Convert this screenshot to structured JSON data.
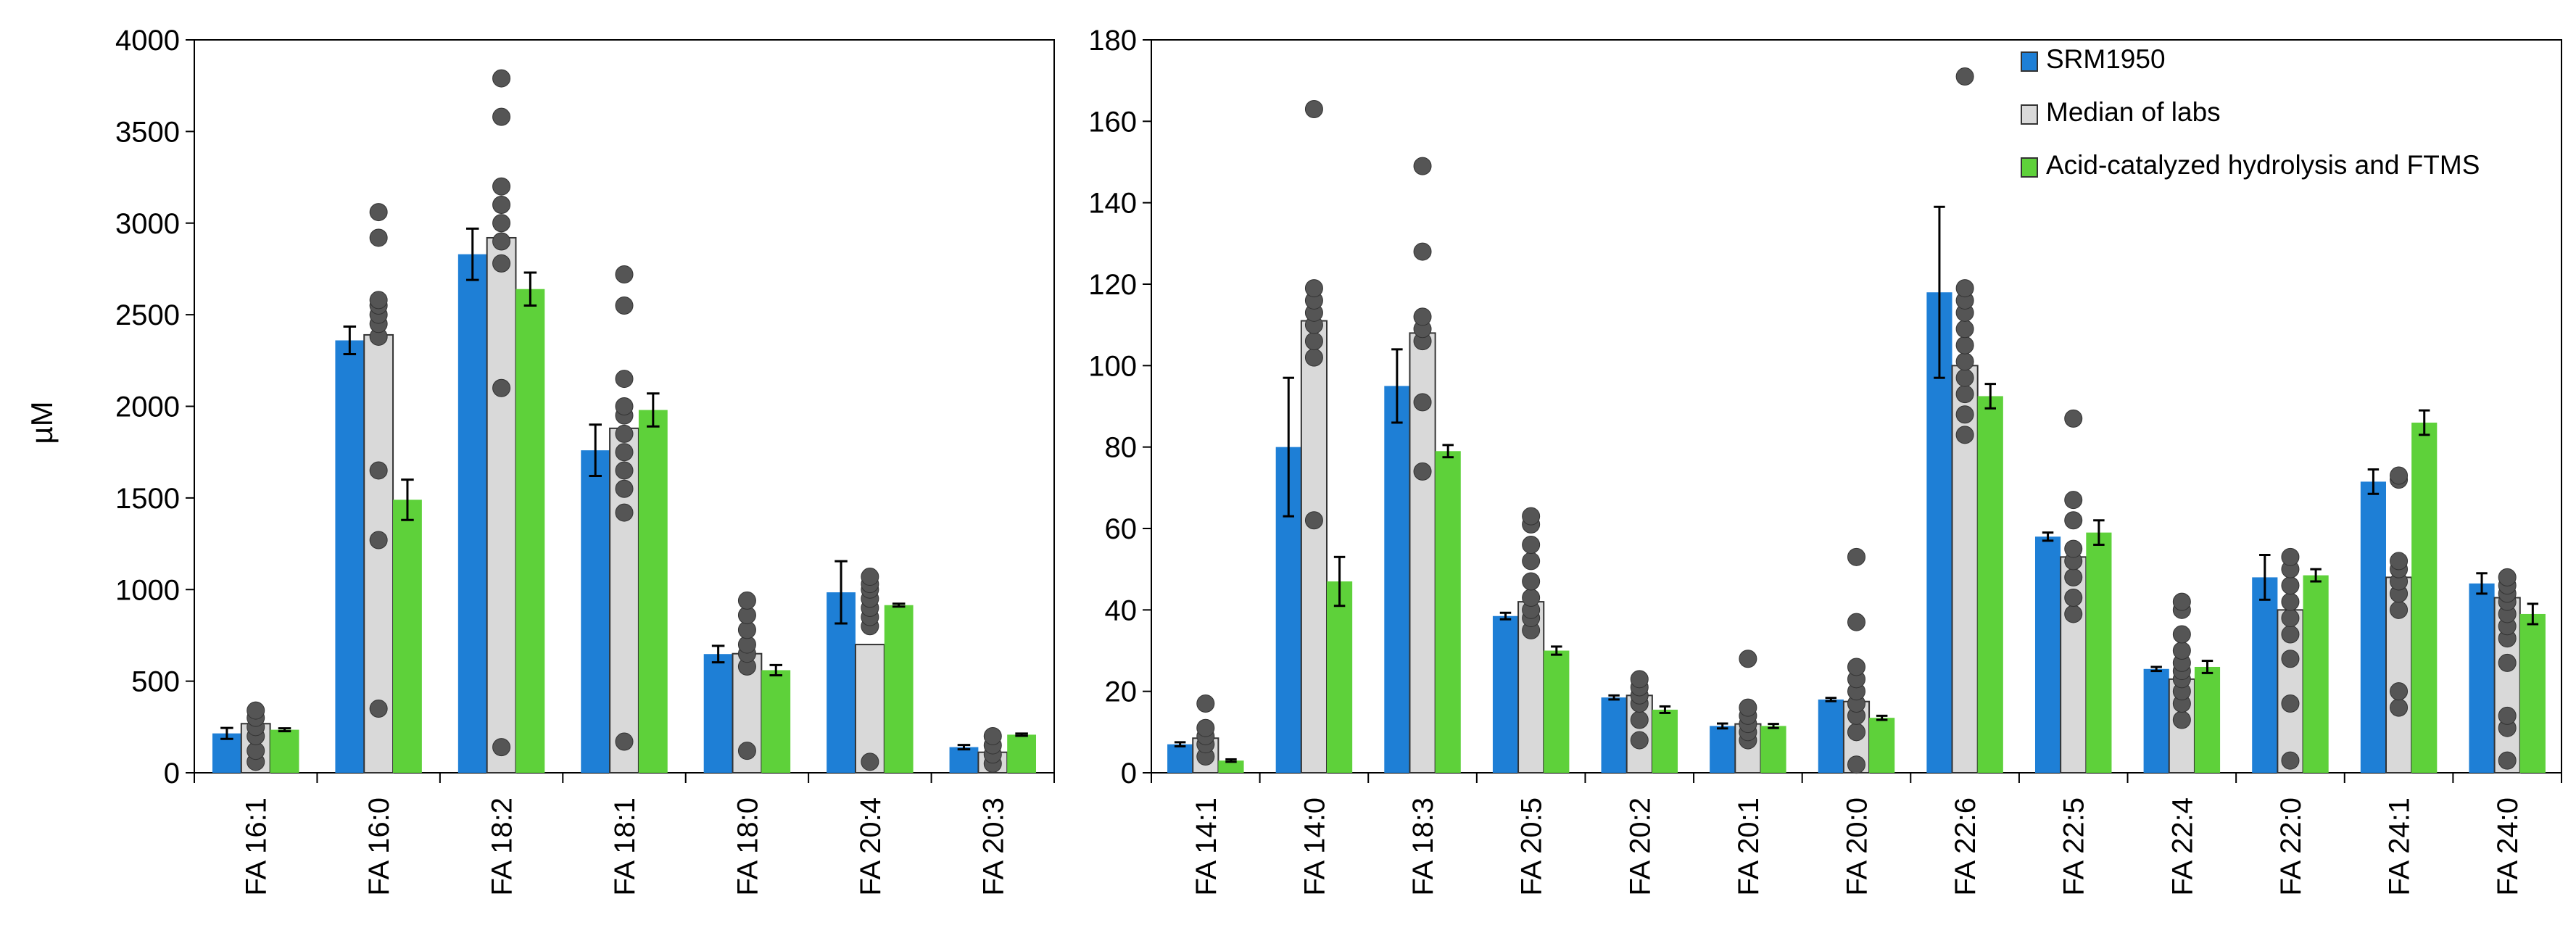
{
  "colors": {
    "srm": "#1e7fd6",
    "median": "#d9d9d9",
    "acid": "#5ed13a",
    "dots": "#555555",
    "error": "#000000"
  },
  "chart_data": [
    {
      "type": "bar",
      "ylabel": "µM",
      "ylim": [
        0,
        4000
      ],
      "yticks": [
        0,
        500,
        1000,
        1500,
        2000,
        2500,
        3000,
        3500,
        4000
      ],
      "yticklabels": [
        "0",
        "500",
        "1000",
        "1500",
        "2000",
        "2500",
        "3000",
        "3500",
        "4000"
      ],
      "categories": [
        "FA 16:1",
        "FA 16:0",
        "FA 18:2",
        "FA 18:1",
        "FA 18:0",
        "FA 20:4",
        "FA 20:3"
      ],
      "series": [
        {
          "name": "SRM1950",
          "color_key": "srm",
          "values": [
            215,
            2360,
            2830,
            1760,
            648,
            985,
            140
          ],
          "errors": [
            30,
            75,
            140,
            140,
            45,
            170,
            12
          ]
        },
        {
          "name": "Median of labs",
          "color_key": "median",
          "values": [
            268,
            2390,
            2920,
            1880,
            650,
            700,
            112
          ],
          "errors": [
            0,
            0,
            0,
            0,
            0,
            0,
            0
          ]
        },
        {
          "name": "Acid-catalyzed hydrolysis and FTMS",
          "color_key": "acid",
          "values": [
            235,
            1490,
            2640,
            1980,
            560,
            915,
            208
          ],
          "errors": [
            8,
            110,
            90,
            90,
            28,
            8,
            6
          ]
        }
      ],
      "points": [
        [
          60,
          120,
          200,
          250,
          300,
          340
        ],
        [
          350,
          1270,
          1650,
          2380,
          2450,
          2500,
          2550,
          2580,
          2920,
          3060
        ],
        [
          140,
          2100,
          2780,
          2900,
          3000,
          3100,
          3200,
          3580,
          3790
        ],
        [
          170,
          1420,
          1550,
          1650,
          1750,
          1850,
          1950,
          2000,
          2150,
          2550,
          2720
        ],
        [
          120,
          580,
          650,
          700,
          780,
          860,
          940
        ],
        [
          60,
          800,
          850,
          900,
          950,
          1000,
          1030,
          1070
        ],
        [
          50,
          100,
          150,
          200
        ]
      ]
    },
    {
      "type": "bar",
      "ylabel": "",
      "ylim": [
        0,
        180
      ],
      "yticks": [
        0,
        20,
        40,
        60,
        80,
        100,
        120,
        140,
        160,
        180
      ],
      "yticklabels": [
        "0",
        "20",
        "40",
        "60",
        "80",
        "100",
        "120",
        "140",
        "160",
        "180"
      ],
      "categories": [
        "FA 14:1",
        "FA 14:0",
        "FA 18:3",
        "FA 20:5",
        "FA 20:2",
        "FA 20:1",
        "FA 20:0",
        "FA 22:6",
        "FA 22:5",
        "FA 22:4",
        "FA 22:0",
        "FA 24:1",
        "FA 24:0"
      ],
      "legend": {
        "position": "top-right",
        "entries": [
          "SRM1950",
          "Median of labs",
          "Acid-catalyzed hydrolysis and FTMS"
        ]
      },
      "series": [
        {
          "name": "SRM1950",
          "color_key": "srm",
          "values": [
            7,
            80,
            95,
            38.5,
            18.5,
            11.5,
            18,
            118,
            58,
            25.5,
            48,
            71.5,
            46.5
          ],
          "errors": [
            0.5,
            17,
            9,
            0.8,
            0.5,
            0.6,
            0.4,
            21,
            1,
            0.5,
            5.5,
            3,
            2.5
          ]
        },
        {
          "name": "Median of labs",
          "color_key": "median",
          "values": [
            8.5,
            111,
            108,
            42,
            19,
            12,
            17.5,
            100,
            53,
            23,
            40,
            48,
            43
          ],
          "errors": [
            0,
            0,
            0,
            0,
            0,
            0,
            0,
            0,
            0,
            0,
            0,
            0,
            0
          ]
        },
        {
          "name": "Acid-catalyzed hydrolysis and FTMS",
          "color_key": "acid",
          "values": [
            3,
            47,
            79,
            30,
            15.5,
            11.5,
            13.5,
            92.5,
            59,
            26,
            48.5,
            86,
            39
          ],
          "errors": [
            0.3,
            6,
            1.5,
            1,
            0.8,
            0.5,
            0.5,
            3,
            3,
            1.5,
            1.5,
            3,
            2.5
          ]
        }
      ],
      "points": [
        [
          4,
          7,
          9,
          11,
          17
        ],
        [
          62,
          102,
          106,
          110,
          113,
          116,
          119,
          163
        ],
        [
          74,
          91,
          106,
          109,
          112,
          128,
          149
        ],
        [
          35,
          38,
          40,
          43,
          47,
          52,
          56,
          61,
          63
        ],
        [
          8,
          13,
          17,
          19,
          21,
          23
        ],
        [
          8,
          10,
          12,
          14,
          16,
          28
        ],
        [
          2,
          10,
          14,
          17,
          20,
          23,
          26,
          37,
          53
        ],
        [
          83,
          88,
          93,
          97,
          101,
          105,
          109,
          113,
          116,
          119,
          171
        ],
        [
          39,
          43,
          48,
          52,
          55,
          62,
          67,
          87
        ],
        [
          13,
          17,
          20,
          23,
          25,
          27,
          30,
          34,
          40,
          42
        ],
        [
          3,
          17,
          28,
          34,
          38,
          42,
          46,
          50,
          53
        ],
        [
          16,
          20,
          40,
          44,
          47,
          50,
          52,
          72,
          73
        ],
        [
          3,
          11,
          14,
          27,
          33,
          36,
          39,
          42,
          44,
          46,
          48
        ]
      ]
    }
  ]
}
